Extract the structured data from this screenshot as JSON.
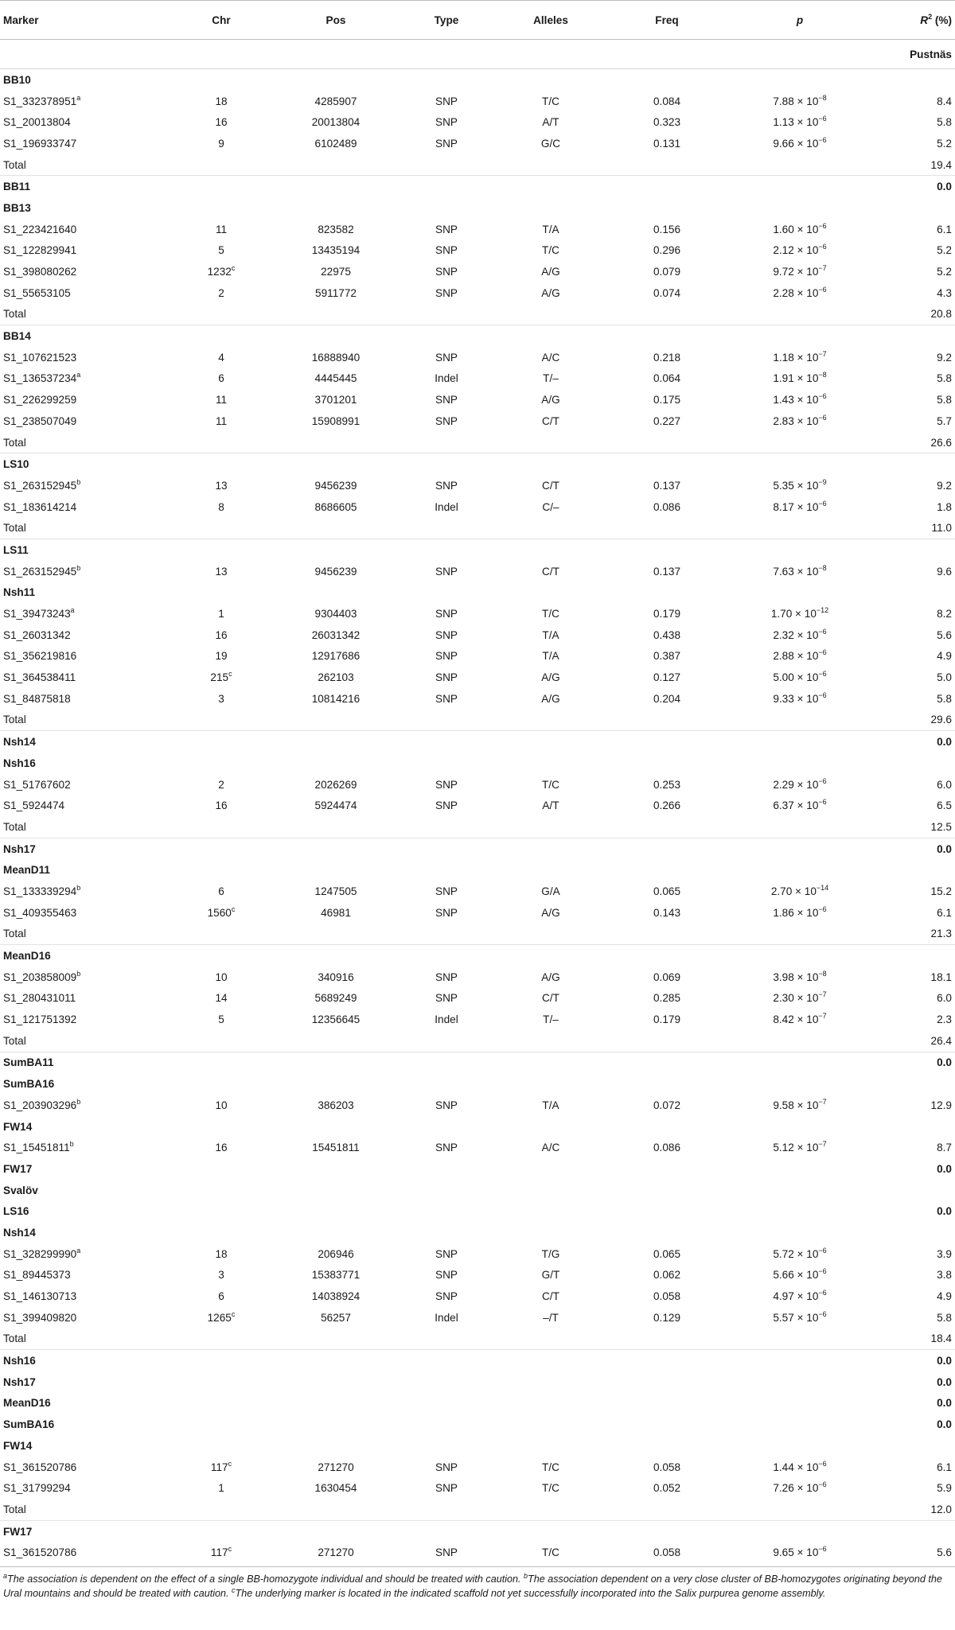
{
  "columns": [
    "Marker",
    "Chr",
    "Pos",
    "Type",
    "Alleles",
    "Freq",
    "p",
    "R",
    "2",
    " (%)"
  ],
  "rows": [
    {
      "kind": "section",
      "label": "Pustnäs"
    },
    {
      "kind": "trait",
      "label": "BB10"
    },
    {
      "kind": "data",
      "marker": "S1_332378951",
      "msup": "a",
      "chr": "18",
      "pos": "4285907",
      "type": "SNP",
      "alleles": "T/C",
      "freq": "0.084",
      "pm": "7.88",
      "pe": "−8",
      "r2": "8.4"
    },
    {
      "kind": "data",
      "marker": "S1_20013804",
      "chr": "16",
      "pos": "20013804",
      "type": "SNP",
      "alleles": "A/T",
      "freq": "0.323",
      "pm": "1.13",
      "pe": "−6",
      "r2": "5.8"
    },
    {
      "kind": "data",
      "marker": "S1_196933747",
      "chr": "9",
      "pos": "6102489",
      "type": "SNP",
      "alleles": "G/C",
      "freq": "0.131",
      "pm": "9.66",
      "pe": "−6",
      "r2": "5.2"
    },
    {
      "kind": "total",
      "label": "Total",
      "r2": "19.4"
    },
    {
      "kind": "trait",
      "label": "BB11",
      "r2": "0.0"
    },
    {
      "kind": "trait",
      "label": "BB13"
    },
    {
      "kind": "data",
      "marker": "S1_223421640",
      "chr": "11",
      "pos": "823582",
      "type": "SNP",
      "alleles": "T/A",
      "freq": "0.156",
      "pm": "1.60",
      "pe": "−6",
      "r2": "6.1"
    },
    {
      "kind": "data",
      "marker": "S1_122829941",
      "chr": "5",
      "pos": "13435194",
      "type": "SNP",
      "alleles": "T/C",
      "freq": "0.296",
      "pm": "2.12",
      "pe": "−6",
      "r2": "5.2"
    },
    {
      "kind": "data",
      "marker": "S1_398080262",
      "chr": "1232",
      "csup": "c",
      "pos": "22975",
      "type": "SNP",
      "alleles": "A/G",
      "freq": "0.079",
      "pm": "9.72",
      "pe": "−7",
      "r2": "5.2"
    },
    {
      "kind": "data",
      "marker": "S1_55653105",
      "chr": "2",
      "pos": "5911772",
      "type": "SNP",
      "alleles": "A/G",
      "freq": "0.074",
      "pm": "2.28",
      "pe": "−6",
      "r2": "4.3"
    },
    {
      "kind": "total",
      "label": "Total",
      "r2": "20.8"
    },
    {
      "kind": "trait",
      "label": "BB14"
    },
    {
      "kind": "data",
      "marker": "S1_107621523",
      "chr": "4",
      "pos": "16888940",
      "type": "SNP",
      "alleles": "A/C",
      "freq": "0.218",
      "pm": "1.18",
      "pe": "−7",
      "r2": "9.2"
    },
    {
      "kind": "data",
      "marker": "S1_136537234",
      "msup": "a",
      "chr": "6",
      "pos": "4445445",
      "type": "Indel",
      "alleles": "T/–",
      "freq": "0.064",
      "pm": "1.91",
      "pe": "−8",
      "r2": "5.8"
    },
    {
      "kind": "data",
      "marker": "S1_226299259",
      "chr": "11",
      "pos": "3701201",
      "type": "SNP",
      "alleles": "A/G",
      "freq": "0.175",
      "pm": "1.43",
      "pe": "−6",
      "r2": "5.8"
    },
    {
      "kind": "data",
      "marker": "S1_238507049",
      "chr": "11",
      "pos": "15908991",
      "type": "SNP",
      "alleles": "C/T",
      "freq": "0.227",
      "pm": "2.83",
      "pe": "−6",
      "r2": "5.7"
    },
    {
      "kind": "total",
      "label": "Total",
      "r2": "26.6"
    },
    {
      "kind": "trait",
      "label": "LS10"
    },
    {
      "kind": "data",
      "marker": "S1_263152945",
      "msup": "b",
      "chr": "13",
      "pos": "9456239",
      "type": "SNP",
      "alleles": "C/T",
      "freq": "0.137",
      "pm": "5.35",
      "pe": "−9",
      "r2": "9.2"
    },
    {
      "kind": "data",
      "marker": "S1_183614214",
      "chr": "8",
      "pos": "8686605",
      "type": "Indel",
      "alleles": "C/–",
      "freq": "0.086",
      "pm": "8.17",
      "pe": "−6",
      "r2": "1.8"
    },
    {
      "kind": "total",
      "label": "Total",
      "r2": "11.0"
    },
    {
      "kind": "trait",
      "label": "LS11"
    },
    {
      "kind": "data",
      "marker": "S1_263152945",
      "msup": "b",
      "chr": "13",
      "pos": "9456239",
      "type": "SNP",
      "alleles": "C/T",
      "freq": "0.137",
      "pm": "7.63",
      "pe": "−8",
      "r2": "9.6"
    },
    {
      "kind": "trait",
      "label": "Nsh11"
    },
    {
      "kind": "data",
      "marker": "S1_39473243",
      "msup": "a",
      "chr": "1",
      "pos": "9304403",
      "type": "SNP",
      "alleles": "T/C",
      "freq": "0.179",
      "pm": "1.70",
      "pe": "−12",
      "r2": "8.2"
    },
    {
      "kind": "data",
      "marker": "S1_26031342",
      "chr": "16",
      "pos": "26031342",
      "type": "SNP",
      "alleles": "T/A",
      "freq": "0.438",
      "pm": "2.32",
      "pe": "−6",
      "r2": "5.6"
    },
    {
      "kind": "data",
      "marker": "S1_356219816",
      "chr": "19",
      "pos": "12917686",
      "type": "SNP",
      "alleles": "T/A",
      "freq": "0.387",
      "pm": "2.88",
      "pe": "−6",
      "r2": "4.9"
    },
    {
      "kind": "data",
      "marker": "S1_364538411",
      "chr": "215",
      "csup": "c",
      "pos": "262103",
      "type": "SNP",
      "alleles": "A/G",
      "freq": "0.127",
      "pm": "5.00",
      "pe": "−6",
      "r2": "5.0"
    },
    {
      "kind": "data",
      "marker": "S1_84875818",
      "chr": "3",
      "pos": "10814216",
      "type": "SNP",
      "alleles": "A/G",
      "freq": "0.204",
      "pm": "9.33",
      "pe": "−6",
      "r2": "5.8"
    },
    {
      "kind": "total",
      "label": "Total",
      "r2": "29.6"
    },
    {
      "kind": "trait",
      "label": "Nsh14",
      "r2": "0.0"
    },
    {
      "kind": "trait",
      "label": "Nsh16"
    },
    {
      "kind": "data",
      "marker": "S1_51767602",
      "chr": "2",
      "pos": "2026269",
      "type": "SNP",
      "alleles": "T/C",
      "freq": "0.253",
      "pm": "2.29",
      "pe": "−6",
      "r2": "6.0"
    },
    {
      "kind": "data",
      "marker": "S1_5924474",
      "chr": "16",
      "pos": "5924474",
      "type": "SNP",
      "alleles": "A/T",
      "freq": "0.266",
      "pm": "6.37",
      "pe": "−6",
      "r2": "6.5"
    },
    {
      "kind": "total",
      "label": "Total",
      "r2": "12.5"
    },
    {
      "kind": "trait",
      "label": "Nsh17",
      "r2": "0.0"
    },
    {
      "kind": "trait",
      "label": "MeanD11"
    },
    {
      "kind": "data",
      "marker": "S1_133339294",
      "msup": "b",
      "chr": "6",
      "pos": "1247505",
      "type": "SNP",
      "alleles": "G/A",
      "freq": "0.065",
      "pm": "2.70",
      "pe": "−14",
      "r2": "15.2"
    },
    {
      "kind": "data",
      "marker": "S1_409355463",
      "chr": "1560",
      "csup": "c",
      "pos": "46981",
      "type": "SNP",
      "alleles": "A/G",
      "freq": "0.143",
      "pm": "1.86",
      "pe": "−6",
      "r2": "6.1"
    },
    {
      "kind": "total",
      "label": "Total",
      "r2": "21.3"
    },
    {
      "kind": "trait",
      "label": "MeanD16"
    },
    {
      "kind": "data",
      "marker": "S1_203858009",
      "msup": "b",
      "chr": "10",
      "pos": "340916",
      "type": "SNP",
      "alleles": "A/G",
      "freq": "0.069",
      "pm": "3.98",
      "pe": "−8",
      "r2": "18.1"
    },
    {
      "kind": "data",
      "marker": "S1_280431011",
      "chr": "14",
      "pos": "5689249",
      "type": "SNP",
      "alleles": "C/T",
      "freq": "0.285",
      "pm": "2.30",
      "pe": "−7",
      "r2": "6.0"
    },
    {
      "kind": "data",
      "marker": "S1_121751392",
      "chr": "5",
      "pos": "12356645",
      "type": "Indel",
      "alleles": "T/–",
      "freq": "0.179",
      "pm": "8.42",
      "pe": "−7",
      "r2": "2.3"
    },
    {
      "kind": "total",
      "label": "Total",
      "r2": "26.4"
    },
    {
      "kind": "trait",
      "label": "SumBA11",
      "r2": "0.0"
    },
    {
      "kind": "trait",
      "label": "SumBA16"
    },
    {
      "kind": "data",
      "marker": "S1_203903296",
      "msup": "b",
      "chr": "10",
      "pos": "386203",
      "type": "SNP",
      "alleles": "T/A",
      "freq": "0.072",
      "pm": "9.58",
      "pe": "−7",
      "r2": "12.9"
    },
    {
      "kind": "trait",
      "label": "FW14"
    },
    {
      "kind": "data",
      "marker": "S1_15451811",
      "msup": "b",
      "chr": "16",
      "pos": "15451811",
      "type": "SNP",
      "alleles": "A/C",
      "freq": "0.086",
      "pm": "5.12",
      "pe": "−7",
      "r2": "8.7"
    },
    {
      "kind": "trait",
      "label": "FW17",
      "r2": "0.0"
    },
    {
      "kind": "trait",
      "label": "Svalöv"
    },
    {
      "kind": "trait",
      "label": "LS16",
      "r2": "0.0"
    },
    {
      "kind": "trait",
      "label": "Nsh14"
    },
    {
      "kind": "data",
      "marker": "S1_328299990",
      "msup": "a",
      "chr": "18",
      "pos": "206946",
      "type": "SNP",
      "alleles": "T/G",
      "freq": "0.065",
      "pm": "5.72",
      "pe": "−6",
      "r2": "3.9"
    },
    {
      "kind": "data",
      "marker": "S1_89445373",
      "chr": "3",
      "pos": "15383771",
      "type": "SNP",
      "alleles": "G/T",
      "freq": "0.062",
      "pm": "5.66",
      "pe": "−6",
      "r2": "3.8"
    },
    {
      "kind": "data",
      "marker": "S1_146130713",
      "chr": "6",
      "pos": "14038924",
      "type": "SNP",
      "alleles": "C/T",
      "freq": "0.058",
      "pm": "4.97",
      "pe": "−6",
      "r2": "4.9"
    },
    {
      "kind": "data",
      "marker": "S1_399409820",
      "chr": "1265",
      "csup": "c",
      "pos": "56257",
      "type": "Indel",
      "alleles": "–/T",
      "freq": "0.129",
      "pm": "5.57",
      "pe": "−6",
      "r2": "5.8"
    },
    {
      "kind": "total",
      "label": "Total",
      "r2": "18.4"
    },
    {
      "kind": "trait",
      "label": "Nsh16",
      "r2": "0.0"
    },
    {
      "kind": "trait",
      "label": "Nsh17",
      "r2": "0.0"
    },
    {
      "kind": "trait",
      "label": "MeanD16",
      "r2": "0.0"
    },
    {
      "kind": "trait",
      "label": "SumBA16",
      "r2": "0.0"
    },
    {
      "kind": "trait",
      "label": "FW14"
    },
    {
      "kind": "data",
      "marker": "S1_361520786",
      "chr": "117",
      "csup": "c",
      "pos": "271270",
      "type": "SNP",
      "alleles": "T/C",
      "freq": "0.058",
      "pm": "1.44",
      "pe": "−6",
      "r2": "6.1"
    },
    {
      "kind": "data",
      "marker": "S1_31799294",
      "chr": "1",
      "pos": "1630454",
      "type": "SNP",
      "alleles": "T/C",
      "freq": "0.052",
      "pm": "7.26",
      "pe": "−6",
      "r2": "5.9"
    },
    {
      "kind": "total",
      "label": "Total",
      "r2": "12.0"
    },
    {
      "kind": "trait",
      "label": "FW17"
    },
    {
      "kind": "data",
      "marker": "S1_361520786",
      "chr": "117",
      "csup": "c",
      "pos": "271270",
      "type": "SNP",
      "alleles": "T/C",
      "freq": "0.058",
      "pm": "9.65",
      "pe": "−6",
      "r2": "5.6"
    }
  ],
  "p_times": " × 10",
  "footnotes": [
    {
      "sup": "a",
      "text": "The association is dependent on the effect of a single BB-homozygote individual and should be treated with caution. "
    },
    {
      "sup": "b",
      "text": "The association dependent on a very close cluster of BB-homozygotes originating beyond the Ural mountains and should be treated with caution. "
    },
    {
      "sup": "c",
      "text": "The underlying marker is located in the indicated scaffold not yet successfully incorporated into the Salix purpurea genome assembly."
    }
  ]
}
